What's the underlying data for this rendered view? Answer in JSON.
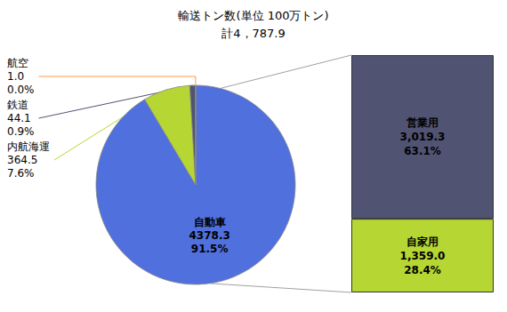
{
  "chart_data": [
    {
      "type": "pie",
      "title": "輸送トン数(単位 100万トン)",
      "subtitle": "計4，787.9",
      "categories": [
        "自動車",
        "内航海運",
        "鉄道",
        "航空"
      ],
      "values": [
        4378.3,
        364.5,
        44.1,
        1.0
      ],
      "value_labels": [
        "4378.3",
        "364.5",
        "44.1",
        "1.0"
      ],
      "shares": [
        91.5,
        7.6,
        0.9,
        0.0
      ],
      "share_labels": [
        "91.5%",
        "7.6%",
        "0.9%",
        "0.0%"
      ],
      "data_labels": true,
      "legend": false
    },
    {
      "type": "bar",
      "stacked": true,
      "data_labels": true,
      "tick_labels": false,
      "legend": false,
      "series": [
        {
          "name": "営業用",
          "values": [
            63.1
          ],
          "value_labels": [
            "63.1%"
          ],
          "amounts": [
            3019.3
          ],
          "amount_labels": [
            "3,019.3"
          ]
        },
        {
          "name": "自家用",
          "values": [
            28.4
          ],
          "value_labels": [
            "28.4%"
          ],
          "amounts": [
            1359.0
          ],
          "amount_labels": [
            "1,359.0"
          ]
        }
      ]
    }
  ]
}
